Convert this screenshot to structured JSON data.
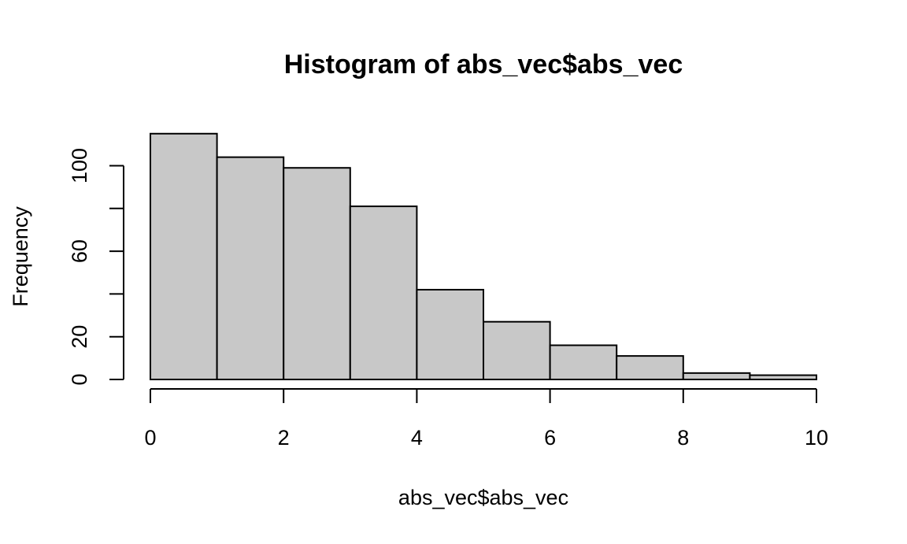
{
  "chart_data": {
    "type": "bar",
    "title": "Histogram of abs_vec$abs_vec",
    "xlabel": "abs_vec$abs_vec",
    "ylabel": "Frequency",
    "bin_edges": [
      0,
      1,
      2,
      3,
      4,
      5,
      6,
      7,
      8,
      9,
      10
    ],
    "values": [
      115,
      104,
      99,
      81,
      42,
      27,
      16,
      11,
      3,
      2
    ],
    "xlim": [
      0,
      10
    ],
    "ylim": [
      0,
      115
    ],
    "x_ticks": [
      0,
      2,
      4,
      6,
      8,
      10
    ],
    "y_ticks": [
      0,
      20,
      40,
      60,
      80,
      100
    ],
    "y_tick_labels": [
      "0",
      "20",
      "",
      "60",
      "",
      "100"
    ],
    "bar_color": "#c8c8c8",
    "grid": false,
    "legend": "none"
  }
}
